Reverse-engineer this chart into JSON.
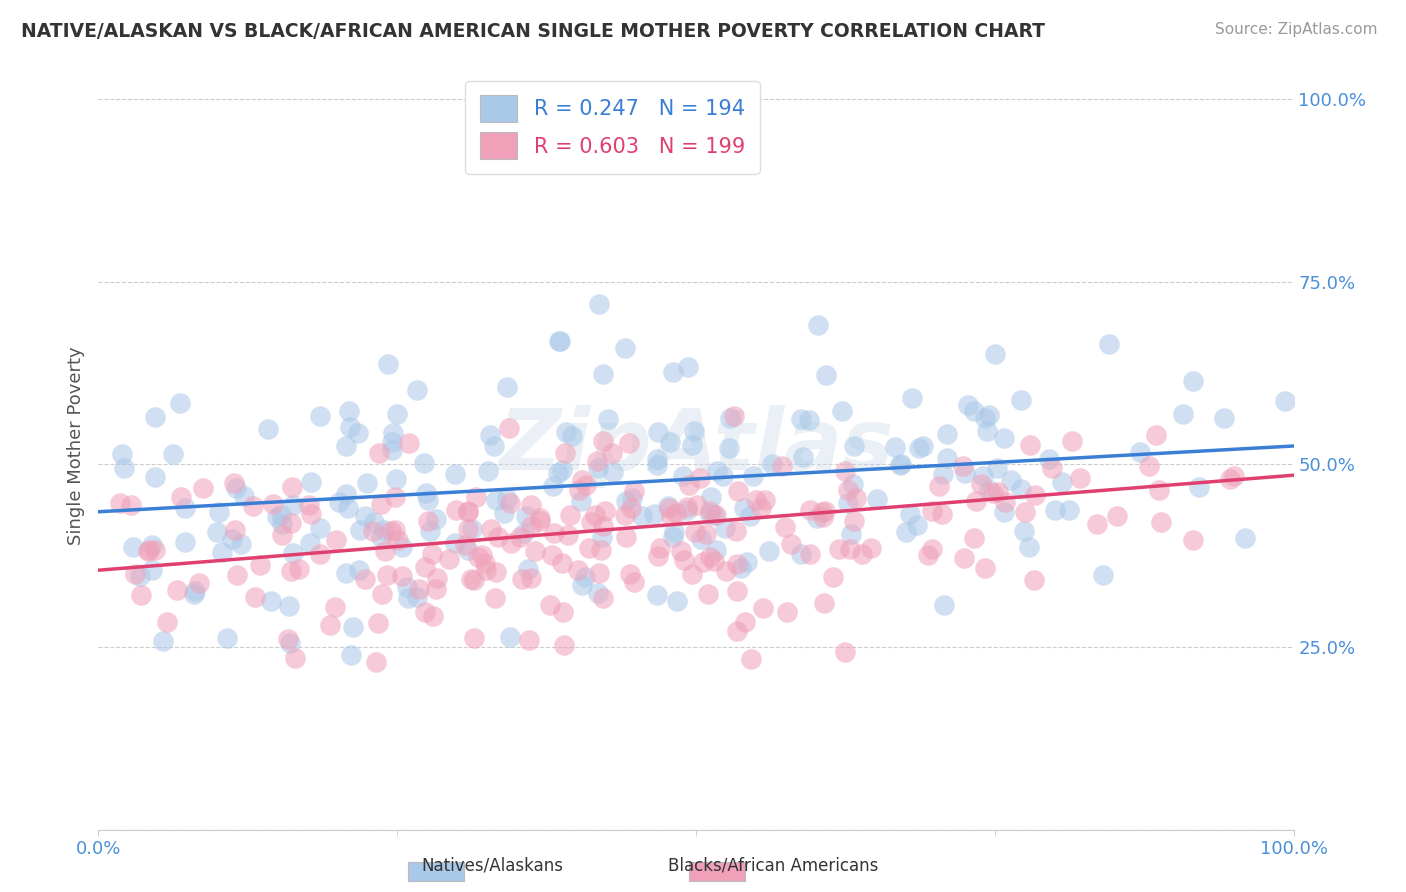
{
  "title": "NATIVE/ALASKAN VS BLACK/AFRICAN AMERICAN SINGLE MOTHER POVERTY CORRELATION CHART",
  "source": "Source: ZipAtlas.com",
  "ylabel": "Single Mother Poverty",
  "xlim": [
    0.0,
    1.0
  ],
  "ylim": [
    0.0,
    1.05
  ],
  "yticks": [
    0.0,
    0.25,
    0.5,
    0.75,
    1.0
  ],
  "ytick_labels": [
    "",
    "25.0%",
    "50.0%",
    "75.0%",
    "100.0%"
  ],
  "legend_entries": [
    {
      "label": "R = 0.247   N = 194",
      "color": "#aac8e8"
    },
    {
      "label": "R = 0.603   N = 199",
      "color": "#f0a0b8"
    }
  ],
  "series1_R": 0.247,
  "series1_N": 194,
  "series2_R": 0.603,
  "series2_N": 199,
  "dot_color_1": "#aac8e8",
  "dot_color_2": "#f0a0b8",
  "line_color_1": "#3a7fd5",
  "line_color_2": "#e04070",
  "line1_x0": 0.0,
  "line1_y0": 0.435,
  "line1_x1": 1.0,
  "line1_y1": 0.525,
  "line2_x0": 0.0,
  "line2_y0": 0.355,
  "line2_x1": 1.0,
  "line2_y1": 0.485,
  "watermark": "ZipAtlas",
  "background_color": "#ffffff",
  "grid_color": "#cccccc",
  "title_color": "#333333",
  "axis_label_color": "#4a90d9",
  "legend_label_color_1": "#3a7fd5",
  "legend_label_color_2": "#e04070"
}
